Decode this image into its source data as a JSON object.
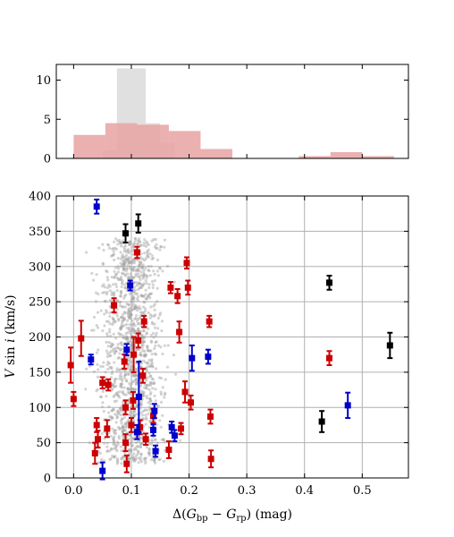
{
  "colors": {
    "background": "#ffffff",
    "axis": "#000000",
    "grid": "#b0b0b0",
    "black_points": "#000000",
    "red_points": "#cc0000",
    "blue_points": "#0000cc",
    "gray_points": "#a0a0a0",
    "hist_gray": "#e0e0e0",
    "hist_red": "#e8a2a2"
  },
  "chart_data": [
    {
      "type": "bar",
      "subtype": "histogram",
      "xlim": [
        -0.03,
        0.58
      ],
      "ylim": [
        0,
        12
      ],
      "y_ticks": [
        0,
        5,
        10
      ],
      "y_tick_labels": [
        "0",
        "5",
        "10"
      ],
      "grid": false,
      "series": [
        {
          "color": "gray",
          "bins": [
            {
              "x0": 0.05,
              "x1": 0.075,
              "count": 1
            },
            {
              "x0": 0.075,
              "x1": 0.1,
              "count": 11.5
            },
            {
              "x0": 0.1,
              "x1": 0.125,
              "count": 11.5
            },
            {
              "x0": 0.125,
              "x1": 0.15,
              "count": 4.5
            },
            {
              "x0": 0.15,
              "x1": 0.175,
              "count": 2
            }
          ]
        },
        {
          "color": "red",
          "bins": [
            {
              "x0": 0.0,
              "x1": 0.055,
              "count": 3
            },
            {
              "x0": 0.055,
              "x1": 0.11,
              "count": 4.5
            },
            {
              "x0": 0.11,
              "x1": 0.165,
              "count": 4.3
            },
            {
              "x0": 0.165,
              "x1": 0.22,
              "count": 3.5
            },
            {
              "x0": 0.22,
              "x1": 0.275,
              "count": 1.2
            },
            {
              "x0": 0.39,
              "x1": 0.445,
              "count": 0.3
            },
            {
              "x0": 0.445,
              "x1": 0.5,
              "count": 0.8
            },
            {
              "x0": 0.5,
              "x1": 0.555,
              "count": 0.3
            }
          ]
        }
      ]
    },
    {
      "type": "scatter",
      "xlabel": "Δ(G_bp − G_rp) (mag)",
      "ylabel": "V sin i (km/s)",
      "xlim": [
        -0.03,
        0.58
      ],
      "ylim": [
        0,
        400
      ],
      "x_ticks": [
        0.0,
        0.1,
        0.2,
        0.3,
        0.4,
        0.5
      ],
      "x_tick_labels": [
        "0.0",
        "0.1",
        "0.2",
        "0.3",
        "0.4",
        "0.5"
      ],
      "y_ticks": [
        0,
        50,
        100,
        150,
        200,
        250,
        300,
        350,
        400
      ],
      "y_tick_labels": [
        "0",
        "50",
        "100",
        "150",
        "200",
        "250",
        "300",
        "350",
        "400"
      ],
      "grid": true,
      "series": [
        {
          "color": "black",
          "marker": "square",
          "points": [
            {
              "x": 0.09,
              "y": 347,
              "err": 13
            },
            {
              "x": 0.112,
              "y": 361,
              "err": 13
            },
            {
              "x": 0.443,
              "y": 277,
              "err": 10
            },
            {
              "x": 0.43,
              "y": 80,
              "err": 15
            },
            {
              "x": 0.548,
              "y": 188,
              "err": 18
            }
          ]
        },
        {
          "color": "red",
          "marker": "square",
          "points": [
            {
              "x": -0.005,
              "y": 160,
              "err": 25
            },
            {
              "x": 0.0,
              "y": 112,
              "err": 10
            },
            {
              "x": 0.013,
              "y": 198,
              "err": 25
            },
            {
              "x": 0.037,
              "y": 35,
              "err": 15
            },
            {
              "x": 0.04,
              "y": 75,
              "err": 10
            },
            {
              "x": 0.042,
              "y": 55,
              "err": 12
            },
            {
              "x": 0.05,
              "y": 135,
              "err": 8
            },
            {
              "x": 0.058,
              "y": 70,
              "err": 12
            },
            {
              "x": 0.06,
              "y": 132,
              "err": 8
            },
            {
              "x": 0.07,
              "y": 245,
              "err": 10
            },
            {
              "x": 0.088,
              "y": 165,
              "err": 10
            },
            {
              "x": 0.09,
              "y": 100,
              "err": 10
            },
            {
              "x": 0.09,
              "y": 50,
              "err": 12
            },
            {
              "x": 0.092,
              "y": 20,
              "err": 12
            },
            {
              "x": 0.1,
              "y": 75,
              "err": 10
            },
            {
              "x": 0.103,
              "y": 110,
              "err": 12
            },
            {
              "x": 0.104,
              "y": 175,
              "err": 25
            },
            {
              "x": 0.11,
              "y": 320,
              "err": 8
            },
            {
              "x": 0.112,
              "y": 195,
              "err": 10
            },
            {
              "x": 0.115,
              "y": 72,
              "err": 10
            },
            {
              "x": 0.12,
              "y": 145,
              "err": 10
            },
            {
              "x": 0.122,
              "y": 222,
              "err": 8
            },
            {
              "x": 0.125,
              "y": 55,
              "err": 8
            },
            {
              "x": 0.138,
              "y": 88,
              "err": 10
            },
            {
              "x": 0.165,
              "y": 40,
              "err": 12
            },
            {
              "x": 0.168,
              "y": 270,
              "err": 8
            },
            {
              "x": 0.18,
              "y": 258,
              "err": 10
            },
            {
              "x": 0.183,
              "y": 207,
              "err": 15
            },
            {
              "x": 0.186,
              "y": 70,
              "err": 8
            },
            {
              "x": 0.193,
              "y": 122,
              "err": 15
            },
            {
              "x": 0.196,
              "y": 305,
              "err": 8
            },
            {
              "x": 0.198,
              "y": 270,
              "err": 10
            },
            {
              "x": 0.203,
              "y": 107,
              "err": 10
            },
            {
              "x": 0.235,
              "y": 222,
              "err": 8
            },
            {
              "x": 0.237,
              "y": 87,
              "err": 10
            },
            {
              "x": 0.238,
              "y": 27,
              "err": 12
            },
            {
              "x": 0.443,
              "y": 170,
              "err": 10
            }
          ]
        },
        {
          "color": "blue",
          "marker": "square",
          "points": [
            {
              "x": 0.03,
              "y": 168,
              "err": 7
            },
            {
              "x": 0.04,
              "y": 385,
              "err": 10
            },
            {
              "x": 0.05,
              "y": 10,
              "err": 12
            },
            {
              "x": 0.092,
              "y": 182,
              "err": 8
            },
            {
              "x": 0.098,
              "y": 273,
              "err": 7
            },
            {
              "x": 0.11,
              "y": 65,
              "err": 10
            },
            {
              "x": 0.113,
              "y": 115,
              "err": 50
            },
            {
              "x": 0.138,
              "y": 68,
              "err": 8
            },
            {
              "x": 0.14,
              "y": 95,
              "err": 10
            },
            {
              "x": 0.142,
              "y": 38,
              "err": 8
            },
            {
              "x": 0.17,
              "y": 72,
              "err": 8
            },
            {
              "x": 0.175,
              "y": 60,
              "err": 8
            },
            {
              "x": 0.205,
              "y": 170,
              "err": 18
            },
            {
              "x": 0.233,
              "y": 172,
              "err": 10
            },
            {
              "x": 0.475,
              "y": 103,
              "err": 18
            }
          ]
        }
      ]
    }
  ]
}
